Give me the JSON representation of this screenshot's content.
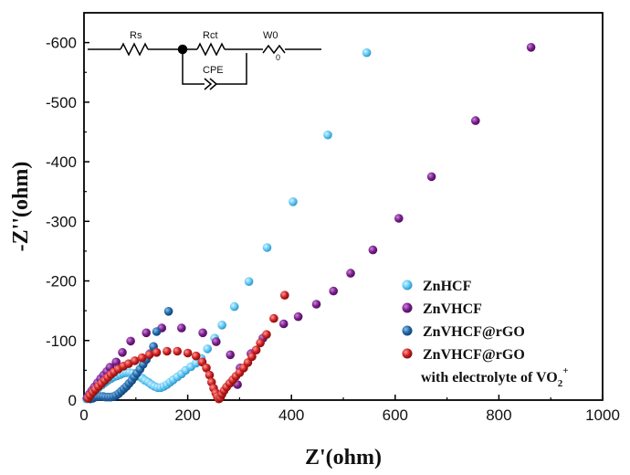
{
  "chart_data": {
    "type": "scatter",
    "xlabel": "Z'(ohm)",
    "ylabel": "-Z''(ohm)",
    "xlim": [
      0,
      1000
    ],
    "ylim": [
      0,
      -650
    ],
    "x_ticks": [
      "0",
      "200",
      "400",
      "600",
      "800",
      "1000"
    ],
    "y_ticks": [
      "0",
      "-100",
      "-200",
      "-300",
      "-400",
      "-500",
      "-600"
    ],
    "circuit": {
      "rs": "Rs",
      "rct": "Rct",
      "w0": "W0",
      "wsub": "0",
      "cpe": "CPE"
    },
    "series": [
      {
        "name": "ZnHCF",
        "color": "#5ec8f5",
        "points": [
          [
            5,
            -2
          ],
          [
            8,
            -5
          ],
          [
            12,
            -9
          ],
          [
            17,
            -13
          ],
          [
            22,
            -17
          ],
          [
            28,
            -21
          ],
          [
            34,
            -25
          ],
          [
            40,
            -29
          ],
          [
            46,
            -33
          ],
          [
            52,
            -36
          ],
          [
            58,
            -39
          ],
          [
            64,
            -41
          ],
          [
            70,
            -43
          ],
          [
            76,
            -45
          ],
          [
            82,
            -46
          ],
          [
            88,
            -46
          ],
          [
            94,
            -45
          ],
          [
            100,
            -43
          ],
          [
            106,
            -40
          ],
          [
            112,
            -37
          ],
          [
            118,
            -33
          ],
          [
            124,
            -30
          ],
          [
            130,
            -26
          ],
          [
            136,
            -23
          ],
          [
            142,
            -21
          ],
          [
            148,
            -21
          ],
          [
            154,
            -23
          ],
          [
            160,
            -26
          ],
          [
            166,
            -30
          ],
          [
            172,
            -34
          ],
          [
            180,
            -39
          ],
          [
            188,
            -44
          ],
          [
            196,
            -50
          ],
          [
            206,
            -56
          ],
          [
            216,
            -62
          ],
          [
            226,
            -70
          ],
          [
            238,
            -86
          ],
          [
            252,
            -104
          ],
          [
            266,
            -126
          ],
          [
            290,
            -157
          ],
          [
            318,
            -199
          ],
          [
            353,
            -256
          ],
          [
            403,
            -333
          ],
          [
            470,
            -445
          ],
          [
            545,
            -583
          ]
        ]
      },
      {
        "name": "ZnVHCF",
        "color": "#7b1d8e",
        "points": [
          [
            6,
            -4
          ],
          [
            10,
            -10
          ],
          [
            15,
            -16
          ],
          [
            20,
            -22
          ],
          [
            26,
            -29
          ],
          [
            32,
            -36
          ],
          [
            38,
            -42
          ],
          [
            44,
            -48
          ],
          [
            50,
            -55
          ],
          [
            62,
            -64
          ],
          [
            74,
            -80
          ],
          [
            90,
            -99
          ],
          [
            120,
            -113
          ],
          [
            150,
            -121
          ],
          [
            188,
            -121
          ],
          [
            229,
            -113
          ],
          [
            255,
            -98
          ],
          [
            282,
            -76
          ],
          [
            296,
            -26
          ],
          [
            301,
            -54
          ],
          [
            322,
            -78
          ],
          [
            345,
            -104
          ],
          [
            385,
            -128
          ],
          [
            413,
            -140
          ],
          [
            448,
            -161
          ],
          [
            481,
            -183
          ],
          [
            514,
            -213
          ],
          [
            557,
            -252
          ],
          [
            607,
            -305
          ],
          [
            670,
            -375
          ],
          [
            755,
            -469
          ],
          [
            862,
            -592
          ]
        ]
      },
      {
        "name": "ZnVHCF@rGO",
        "color": "#2266a8",
        "points": [
          [
            12,
            -2
          ],
          [
            17,
            -3
          ],
          [
            22,
            -5
          ],
          [
            27,
            -6
          ],
          [
            32,
            -6
          ],
          [
            37,
            -6
          ],
          [
            42,
            -5
          ],
          [
            47,
            -5
          ],
          [
            52,
            -5
          ],
          [
            57,
            -6
          ],
          [
            62,
            -8
          ],
          [
            67,
            -11
          ],
          [
            72,
            -15
          ],
          [
            77,
            -19
          ],
          [
            82,
            -23
          ],
          [
            87,
            -28
          ],
          [
            92,
            -33
          ],
          [
            97,
            -39
          ],
          [
            102,
            -45
          ],
          [
            108,
            -52
          ],
          [
            114,
            -60
          ],
          [
            120,
            -68
          ],
          [
            127,
            -78
          ],
          [
            134,
            -90
          ],
          [
            140,
            -115
          ],
          [
            163,
            -149
          ]
        ]
      },
      {
        "name": "ZnVHCF@rGO",
        "color": "#cc1f1f",
        "points": [
          [
            8,
            -3
          ],
          [
            12,
            -8
          ],
          [
            17,
            -13
          ],
          [
            22,
            -18
          ],
          [
            28,
            -23
          ],
          [
            34,
            -28
          ],
          [
            40,
            -33
          ],
          [
            46,
            -38
          ],
          [
            52,
            -43
          ],
          [
            58,
            -47
          ],
          [
            66,
            -52
          ],
          [
            76,
            -57
          ],
          [
            86,
            -61
          ],
          [
            98,
            -66
          ],
          [
            112,
            -71
          ],
          [
            126,
            -76
          ],
          [
            140,
            -80
          ],
          [
            160,
            -82
          ],
          [
            180,
            -82
          ],
          [
            200,
            -79
          ],
          [
            216,
            -74
          ],
          [
            228,
            -64
          ],
          [
            236,
            -54
          ],
          [
            242,
            -42
          ],
          [
            246,
            -30
          ],
          [
            250,
            -20
          ],
          [
            254,
            -12
          ],
          [
            257,
            -6
          ],
          [
            260,
            -2
          ],
          [
            263,
            -4
          ],
          [
            266,
            -10
          ],
          [
            270,
            -16
          ],
          [
            275,
            -22
          ],
          [
            281,
            -28
          ],
          [
            287,
            -34
          ],
          [
            293,
            -40
          ],
          [
            300,
            -46
          ],
          [
            308,
            -54
          ],
          [
            316,
            -63
          ],
          [
            324,
            -73
          ],
          [
            332,
            -84
          ],
          [
            340,
            -96
          ],
          [
            352,
            -110
          ],
          [
            366,
            -137
          ],
          [
            387,
            -176
          ]
        ]
      }
    ],
    "legend_extra": {
      "prefix": "with electrolyte of VO",
      "sub": "2",
      "sup": "+"
    }
  }
}
